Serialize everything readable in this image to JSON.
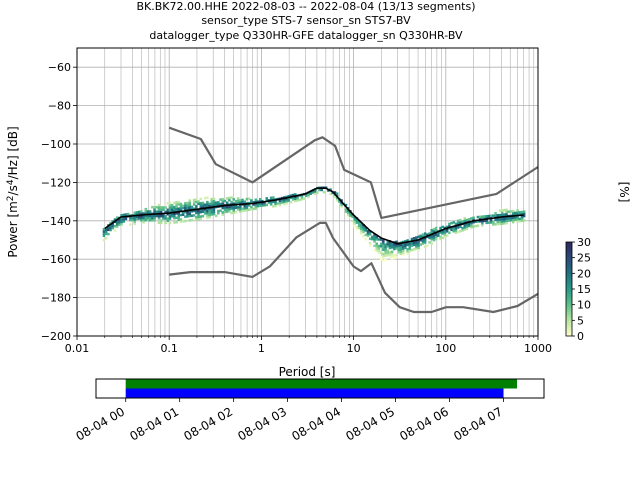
{
  "header": {
    "line1": "BK.BK72.00.HHE   2022-08-03 -- 2022-08-04  (13/13 segments)",
    "line2": "sensor_type STS-7 sensor_sn STS7-BV",
    "line3": "datalogger_type Q330HR-GFE datalogger_sn Q330HR-BV"
  },
  "colorbar": {
    "label": "[%]",
    "ticks": [
      0,
      5,
      10,
      15,
      20,
      25,
      30
    ],
    "colors": [
      "#fdfdcc",
      "#b6e5a0",
      "#5fc08a",
      "#2b9a8a",
      "#22737f",
      "#2a4c7a",
      "#2c2d5c"
    ]
  },
  "timeline": {
    "tick_labels": [
      "08-04 00",
      "08-04 01",
      "08-04 02",
      "08-04 03",
      "08-04 04",
      "08-04 05",
      "08-04 06",
      "08-04 07"
    ],
    "xlim_hours": [
      -0.55,
      7.75
    ],
    "bars": [
      {
        "name": "coverage-green",
        "color": "#008000",
        "start": 0,
        "end": 7.25
      },
      {
        "name": "coverage-blue",
        "color": "#0000ff",
        "start": 0,
        "end": 7.0
      }
    ]
  },
  "chart_data": {
    "type": "heatmap",
    "xlabel": "Period [s]",
    "ylabel": "Power [m²/s⁴/Hz] [dB]",
    "xscale": "log",
    "xlim": [
      0.01,
      1000
    ],
    "ylim": [
      -200,
      -50
    ],
    "xticks": [
      0.01,
      0.1,
      1,
      10,
      100,
      1000
    ],
    "xtick_labels": [
      "0.01",
      "0.1",
      "1",
      "10",
      "100",
      "1000"
    ],
    "yticks": [
      -200,
      -180,
      -160,
      -140,
      -120,
      -100,
      -80,
      -60
    ],
    "ytick_labels": [
      "−200",
      "−180",
      "−160",
      "−140",
      "−120",
      "−100",
      "−80",
      "−60"
    ],
    "grid": true,
    "noise_models": {
      "nhnm": {
        "color": "#666666",
        "x": [
          0.1,
          0.22,
          0.32,
          0.8,
          3.8,
          4.6,
          6.3,
          7.9,
          15.4,
          20,
          354.8,
          1000
        ],
        "y": [
          -91.5,
          -97.4,
          -110.5,
          -120,
          -98,
          -96.5,
          -101,
          -113.5,
          -120,
          -138.5,
          -126,
          -112
        ]
      },
      "nlnm": {
        "color": "#666666",
        "x": [
          0.1,
          0.17,
          0.4,
          0.8,
          1.24,
          2.4,
          4.3,
          5,
          6,
          10,
          12,
          15.6,
          21.9,
          31.6,
          45,
          70,
          101,
          154,
          328,
          600,
          1000
        ],
        "y": [
          -168,
          -166.7,
          -166.7,
          -169.2,
          -163.7,
          -148.6,
          -141.1,
          -141.1,
          -149,
          -163.8,
          -166.2,
          -162.1,
          -177.5,
          -185,
          -187.5,
          -187.5,
          -185,
          -185,
          -187.5,
          -184.4,
          -178
        ]
      },
      "mode": {
        "color": "#000000",
        "x": [
          0.02,
          0.03,
          0.05,
          0.1,
          0.2,
          0.4,
          0.8,
          1.5,
          3,
          4,
          5,
          6,
          8,
          10,
          15,
          20,
          30,
          50,
          100,
          200,
          400,
          700
        ],
        "y": [
          -144,
          -138,
          -137,
          -136,
          -134,
          -132,
          -131,
          -129,
          -126,
          -123,
          -123,
          -125,
          -132,
          -137,
          -145,
          -149,
          -152,
          -150,
          -144,
          -140,
          -138,
          -137
        ]
      }
    },
    "psd_cloud": {
      "center_x": [
        0.019,
        0.028,
        0.05,
        0.1,
        0.2,
        0.4,
        0.8,
        1.5,
        3,
        4,
        5,
        6,
        8,
        10,
        15,
        20,
        30,
        50,
        100,
        200,
        400,
        700
      ],
      "center_y": [
        -146,
        -139,
        -137,
        -136,
        -134,
        -132,
        -131,
        -129,
        -126,
        -123,
        -123,
        -125,
        -132,
        -137,
        -145,
        -149,
        -152,
        -150,
        -144,
        -140,
        -138,
        -137
      ],
      "half_width_db": [
        4,
        4,
        4,
        6,
        6,
        5,
        3,
        3,
        2,
        2,
        2,
        2,
        4,
        5,
        8,
        10,
        6,
        5,
        4,
        3,
        4,
        3
      ],
      "upper_bias_db": [
        0,
        0,
        1,
        3,
        3,
        2,
        1,
        0,
        0,
        0,
        0,
        0,
        -1,
        -3,
        -5,
        -6,
        -2,
        0,
        1,
        1,
        2,
        1
      ],
      "max_percent": 30
    }
  }
}
